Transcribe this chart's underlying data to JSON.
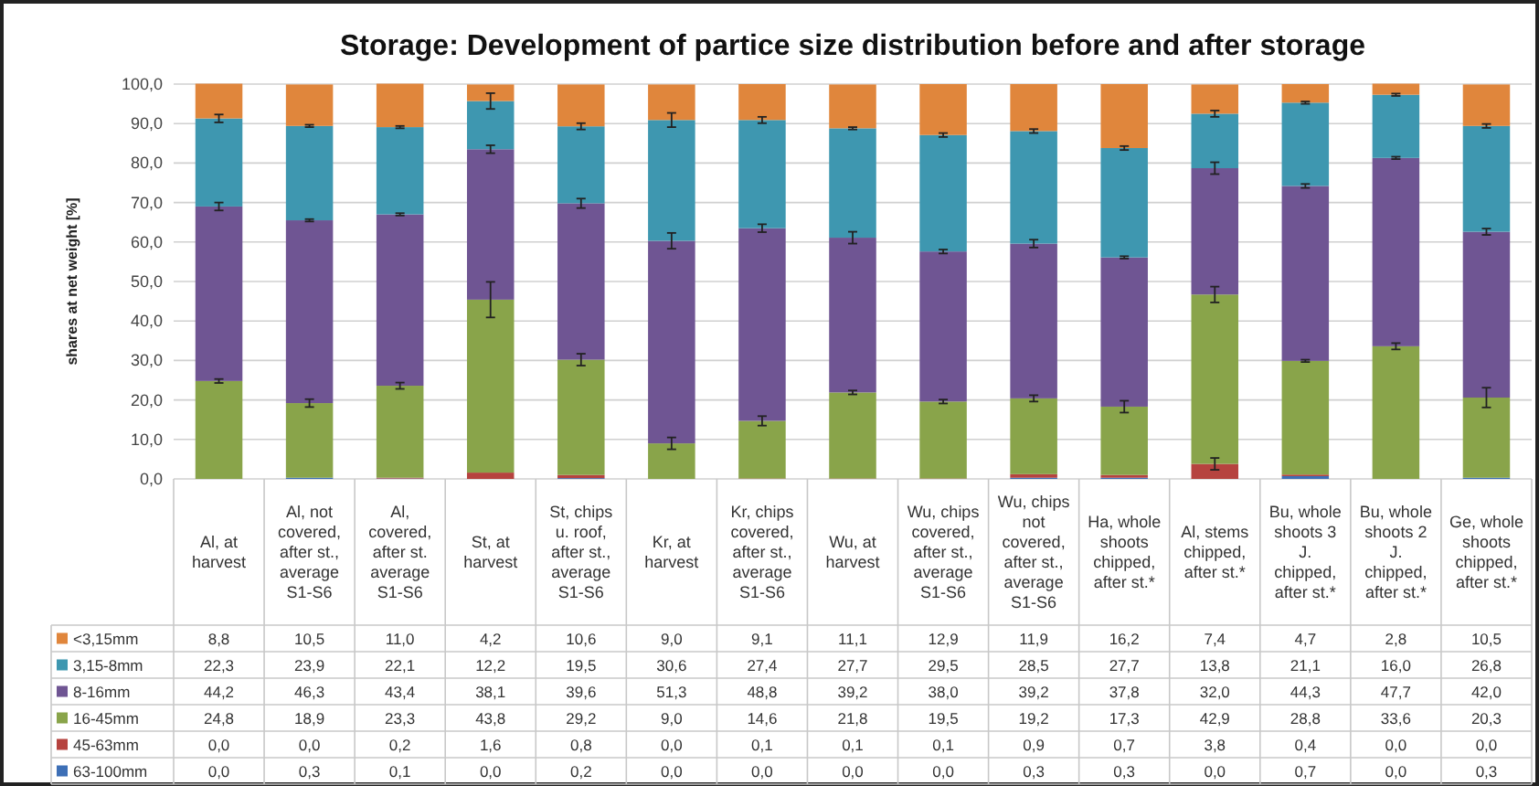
{
  "chart_data": {
    "type": "bar",
    "stacked": true,
    "title": "Storage: Development of partice size distribution before and after storage",
    "ylabel": "shares at net weight [%]",
    "categories": [
      "Al, at harvest",
      "Al, not covered, after st., average S1-S6",
      "Al, covered, after st. average S1-S6",
      "St, at harvest",
      "St, chips u. roof, after st., average S1-S6",
      "Kr, at harvest",
      "Kr, chips covered, after st., average S1-S6",
      "Wu, at harvest",
      "Wu, chips covered, after st., average S1-S6",
      "Wu, chips not covered, after st., average S1-S6",
      "Ha, whole shoots chipped, after st.*",
      "Al, stems chipped, after st.*",
      "Bu, whole shoots 3 J. chipped, after st.*",
      "Bu, whole shoots 2 J. chipped, after st.*",
      "Ge, whole shoots chipped, after st.*"
    ],
    "series": [
      {
        "name": "63-100mm",
        "color": "#3d6fb6",
        "values": [
          0.0,
          0.3,
          0.1,
          0.0,
          0.2,
          0.0,
          0.0,
          0.0,
          0.0,
          0.3,
          0.3,
          0.0,
          0.7,
          0.0,
          0.3
        ],
        "value_labels": [
          "0,0",
          "0,3",
          "0,1",
          "0,0",
          "0,2",
          "0,0",
          "0,0",
          "0,0",
          "0,0",
          "0,3",
          "0,3",
          "0,0",
          "0,7",
          "0,0",
          "0,3"
        ]
      },
      {
        "name": "45-63mm",
        "color": "#b6433f",
        "values": [
          0.0,
          0.0,
          0.2,
          1.6,
          0.8,
          0.0,
          0.1,
          0.1,
          0.1,
          0.9,
          0.7,
          3.8,
          0.4,
          0.0,
          0.0
        ],
        "value_labels": [
          "0,0",
          "0,0",
          "0,2",
          "1,6",
          "0,8",
          "0,0",
          "0,1",
          "0,1",
          "0,1",
          "0,9",
          "0,7",
          "3,8",
          "0,4",
          "0,0",
          "0,0"
        ],
        "errors": [
          null,
          null,
          null,
          null,
          null,
          null,
          null,
          null,
          null,
          null,
          null,
          1.5,
          null,
          null,
          null
        ]
      },
      {
        "name": "16-45mm",
        "color": "#89a44a",
        "values": [
          24.8,
          18.9,
          23.3,
          43.8,
          29.2,
          9.0,
          14.6,
          21.8,
          19.5,
          19.2,
          17.3,
          42.9,
          28.8,
          33.6,
          20.3
        ],
        "value_labels": [
          "24,8",
          "18,9",
          "23,3",
          "43,8",
          "29,2",
          "9,0",
          "14,6",
          "21,8",
          "19,5",
          "19,2",
          "17,3",
          "42,9",
          "28,8",
          "33,6",
          "20,3"
        ],
        "errors": [
          0.5,
          1.0,
          0.8,
          4.5,
          1.5,
          1.5,
          1.2,
          0.5,
          0.5,
          0.8,
          1.5,
          2.0,
          0.3,
          0.8,
          2.5
        ]
      },
      {
        "name": "8-16mm",
        "color": "#6f5593",
        "values": [
          44.2,
          46.3,
          43.4,
          38.1,
          39.6,
          51.3,
          48.8,
          39.2,
          38.0,
          39.2,
          37.8,
          32.0,
          44.3,
          47.7,
          42.0
        ],
        "value_labels": [
          "44,2",
          "46,3",
          "43,4",
          "38,1",
          "39,6",
          "51,3",
          "48,8",
          "39,2",
          "38,0",
          "39,2",
          "37,8",
          "32,0",
          "44,3",
          "47,7",
          "42,0"
        ],
        "errors": [
          1.0,
          0.3,
          0.3,
          1.0,
          1.2,
          2.0,
          1.0,
          1.5,
          0.5,
          1.0,
          0.3,
          1.5,
          0.5,
          0.3,
          0.8
        ]
      },
      {
        "name": "3,15-8mm",
        "color": "#3e97b0",
        "values": [
          22.3,
          23.9,
          22.1,
          12.2,
          19.5,
          30.6,
          27.4,
          27.7,
          29.5,
          28.5,
          27.7,
          13.8,
          21.1,
          16.0,
          26.8
        ],
        "value_labels": [
          "22,3",
          "23,9",
          "22,1",
          "12,2",
          "19,5",
          "30,6",
          "27,4",
          "27,7",
          "29,5",
          "28,5",
          "27,7",
          "13,8",
          "21,1",
          "16,0",
          "26,8"
        ],
        "errors": [
          1.0,
          0.3,
          0.3,
          2.0,
          0.8,
          1.8,
          0.8,
          0.3,
          0.5,
          0.5,
          0.5,
          0.8,
          0.3,
          0.3,
          0.5
        ]
      },
      {
        "name": "<3,15mm",
        "color": "#e0863c",
        "values": [
          8.8,
          10.5,
          11.0,
          4.2,
          10.6,
          9.0,
          9.1,
          11.1,
          12.9,
          11.9,
          16.2,
          7.4,
          4.7,
          2.8,
          10.5
        ],
        "value_labels": [
          "8,8",
          "10,5",
          "11,0",
          "4,2",
          "10,6",
          "9,0",
          "9,1",
          "11,1",
          "12,9",
          "11,9",
          "16,2",
          "7,4",
          "4,7",
          "2,8",
          "10,5"
        ]
      }
    ],
    "ylim": [
      0,
      100
    ],
    "yticks": [
      {
        "value": 0,
        "label": "0,0"
      },
      {
        "value": 10,
        "label": "10,0"
      },
      {
        "value": 20,
        "label": "20,0"
      },
      {
        "value": 30,
        "label": "30,0"
      },
      {
        "value": 40,
        "label": "40,0"
      },
      {
        "value": 50,
        "label": "50,0"
      },
      {
        "value": 60,
        "label": "60,0"
      },
      {
        "value": 70,
        "label": "70,0"
      },
      {
        "value": 80,
        "label": "80,0"
      },
      {
        "value": 90,
        "label": "90,0"
      },
      {
        "value": 100,
        "label": "100,0"
      }
    ],
    "grid": "y",
    "legend": "bottom"
  }
}
